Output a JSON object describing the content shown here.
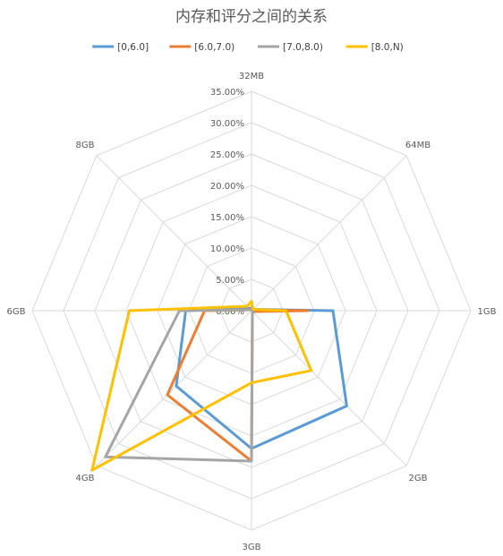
{
  "chart_data": {
    "type": "radar",
    "title": "内存和评分之间的关系",
    "categories": [
      "32MB",
      "64MB",
      "1GB",
      "2GB",
      "3GB",
      "4GB",
      "6GB",
      "8GB"
    ],
    "rlim": [
      0,
      35
    ],
    "tick_labels": [
      "0.00%",
      "5.00%",
      "10.00%",
      "15.00%",
      "20.00%",
      "25.00%",
      "30.00%",
      "35.00%"
    ],
    "legend_position": "top",
    "grid": true,
    "series": [
      {
        "name": "[0,6.0]",
        "color": "#5b9bd5",
        "values": [
          0.5,
          0.3,
          13.0,
          21.5,
          22.0,
          17.0,
          10.5,
          0.5
        ]
      },
      {
        "name": "[6.0,7.0)",
        "color": "#ed7d31",
        "values": [
          0.3,
          0.2,
          9.0,
          0.2,
          24.0,
          19.0,
          7.5,
          0.2
        ]
      },
      {
        "name": "[7.0,8.0)",
        "color": "#a5a5a5",
        "values": [
          0.2,
          0.1,
          0.3,
          0.2,
          24.0,
          33.0,
          11.5,
          0.2
        ]
      },
      {
        "name": "[8.0,N)",
        "color": "#ffc000",
        "values": [
          1.5,
          0.3,
          5.5,
          13.5,
          11.5,
          36.0,
          19.5,
          1.0
        ]
      }
    ]
  }
}
